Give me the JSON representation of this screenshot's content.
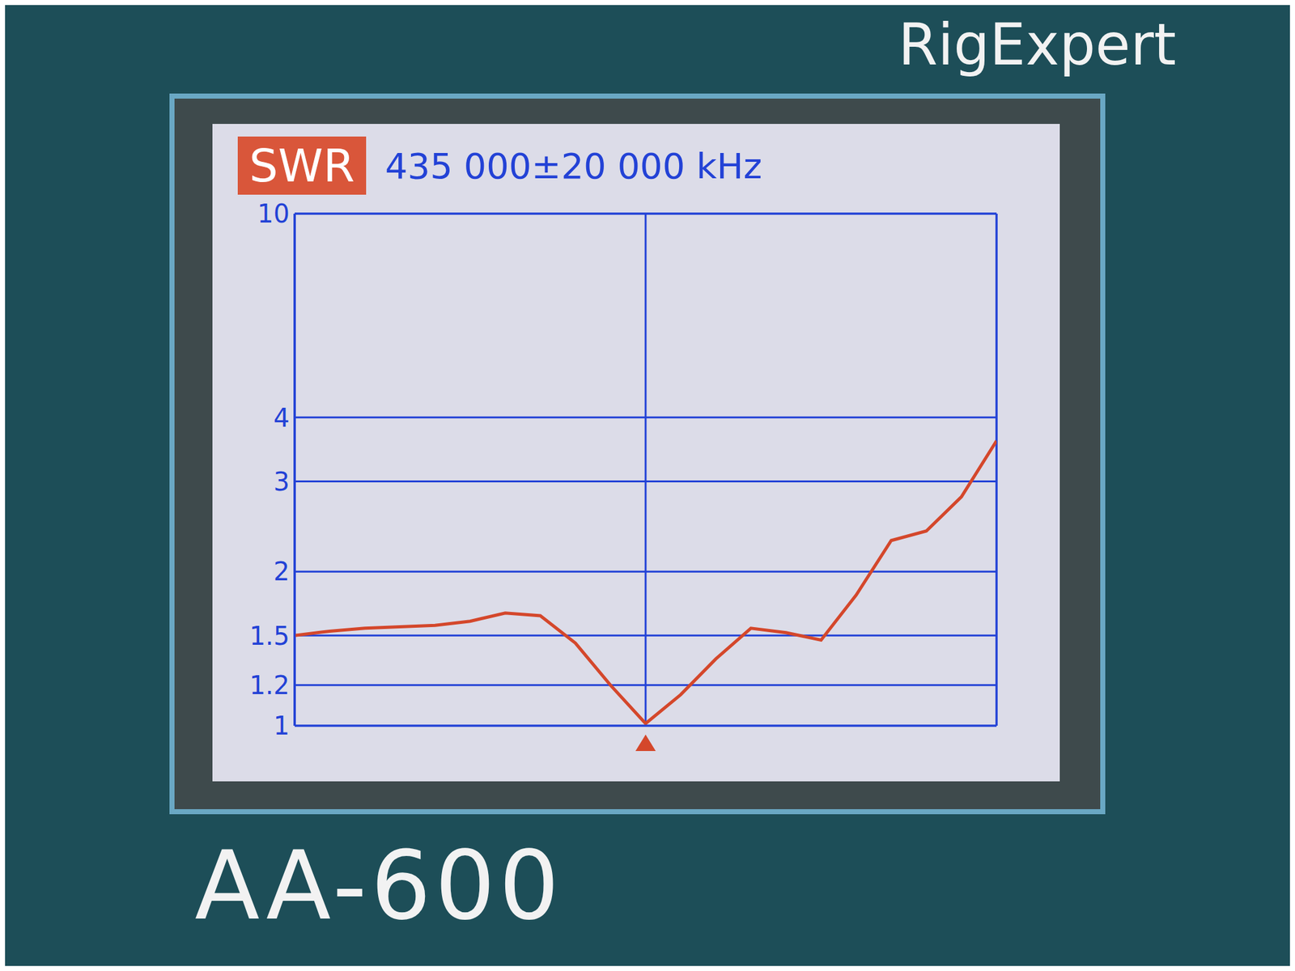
{
  "chart_data": {
    "type": "line",
    "title": "SWR",
    "subtitle": "435 000±20 000 kHz",
    "annotations": [
      "RigExpert",
      "AA-600"
    ],
    "x": [
      415000,
      417000,
      419000,
      421000,
      423000,
      425000,
      427000,
      429000,
      431000,
      433000,
      435000,
      437000,
      439000,
      441000,
      443000,
      445000,
      447000,
      449000,
      451000,
      453000,
      455000
    ],
    "values": [
      1.5,
      1.53,
      1.55,
      1.56,
      1.57,
      1.6,
      1.66,
      1.64,
      1.45,
      1.2,
      1.01,
      1.15,
      1.35,
      1.55,
      1.52,
      1.47,
      1.8,
      2.3,
      2.4,
      2.8,
      3.6
    ],
    "color": "#d4472b",
    "line_style": "solid",
    "xlim": [
      415000,
      455000
    ],
    "xticks": [
      435000
    ],
    "ylim": [
      1,
      10
    ],
    "yticks": [
      1,
      1.2,
      1.5,
      2,
      3,
      4,
      10
    ],
    "log": "y",
    "grid": true,
    "tick_labels": "y"
  }
}
